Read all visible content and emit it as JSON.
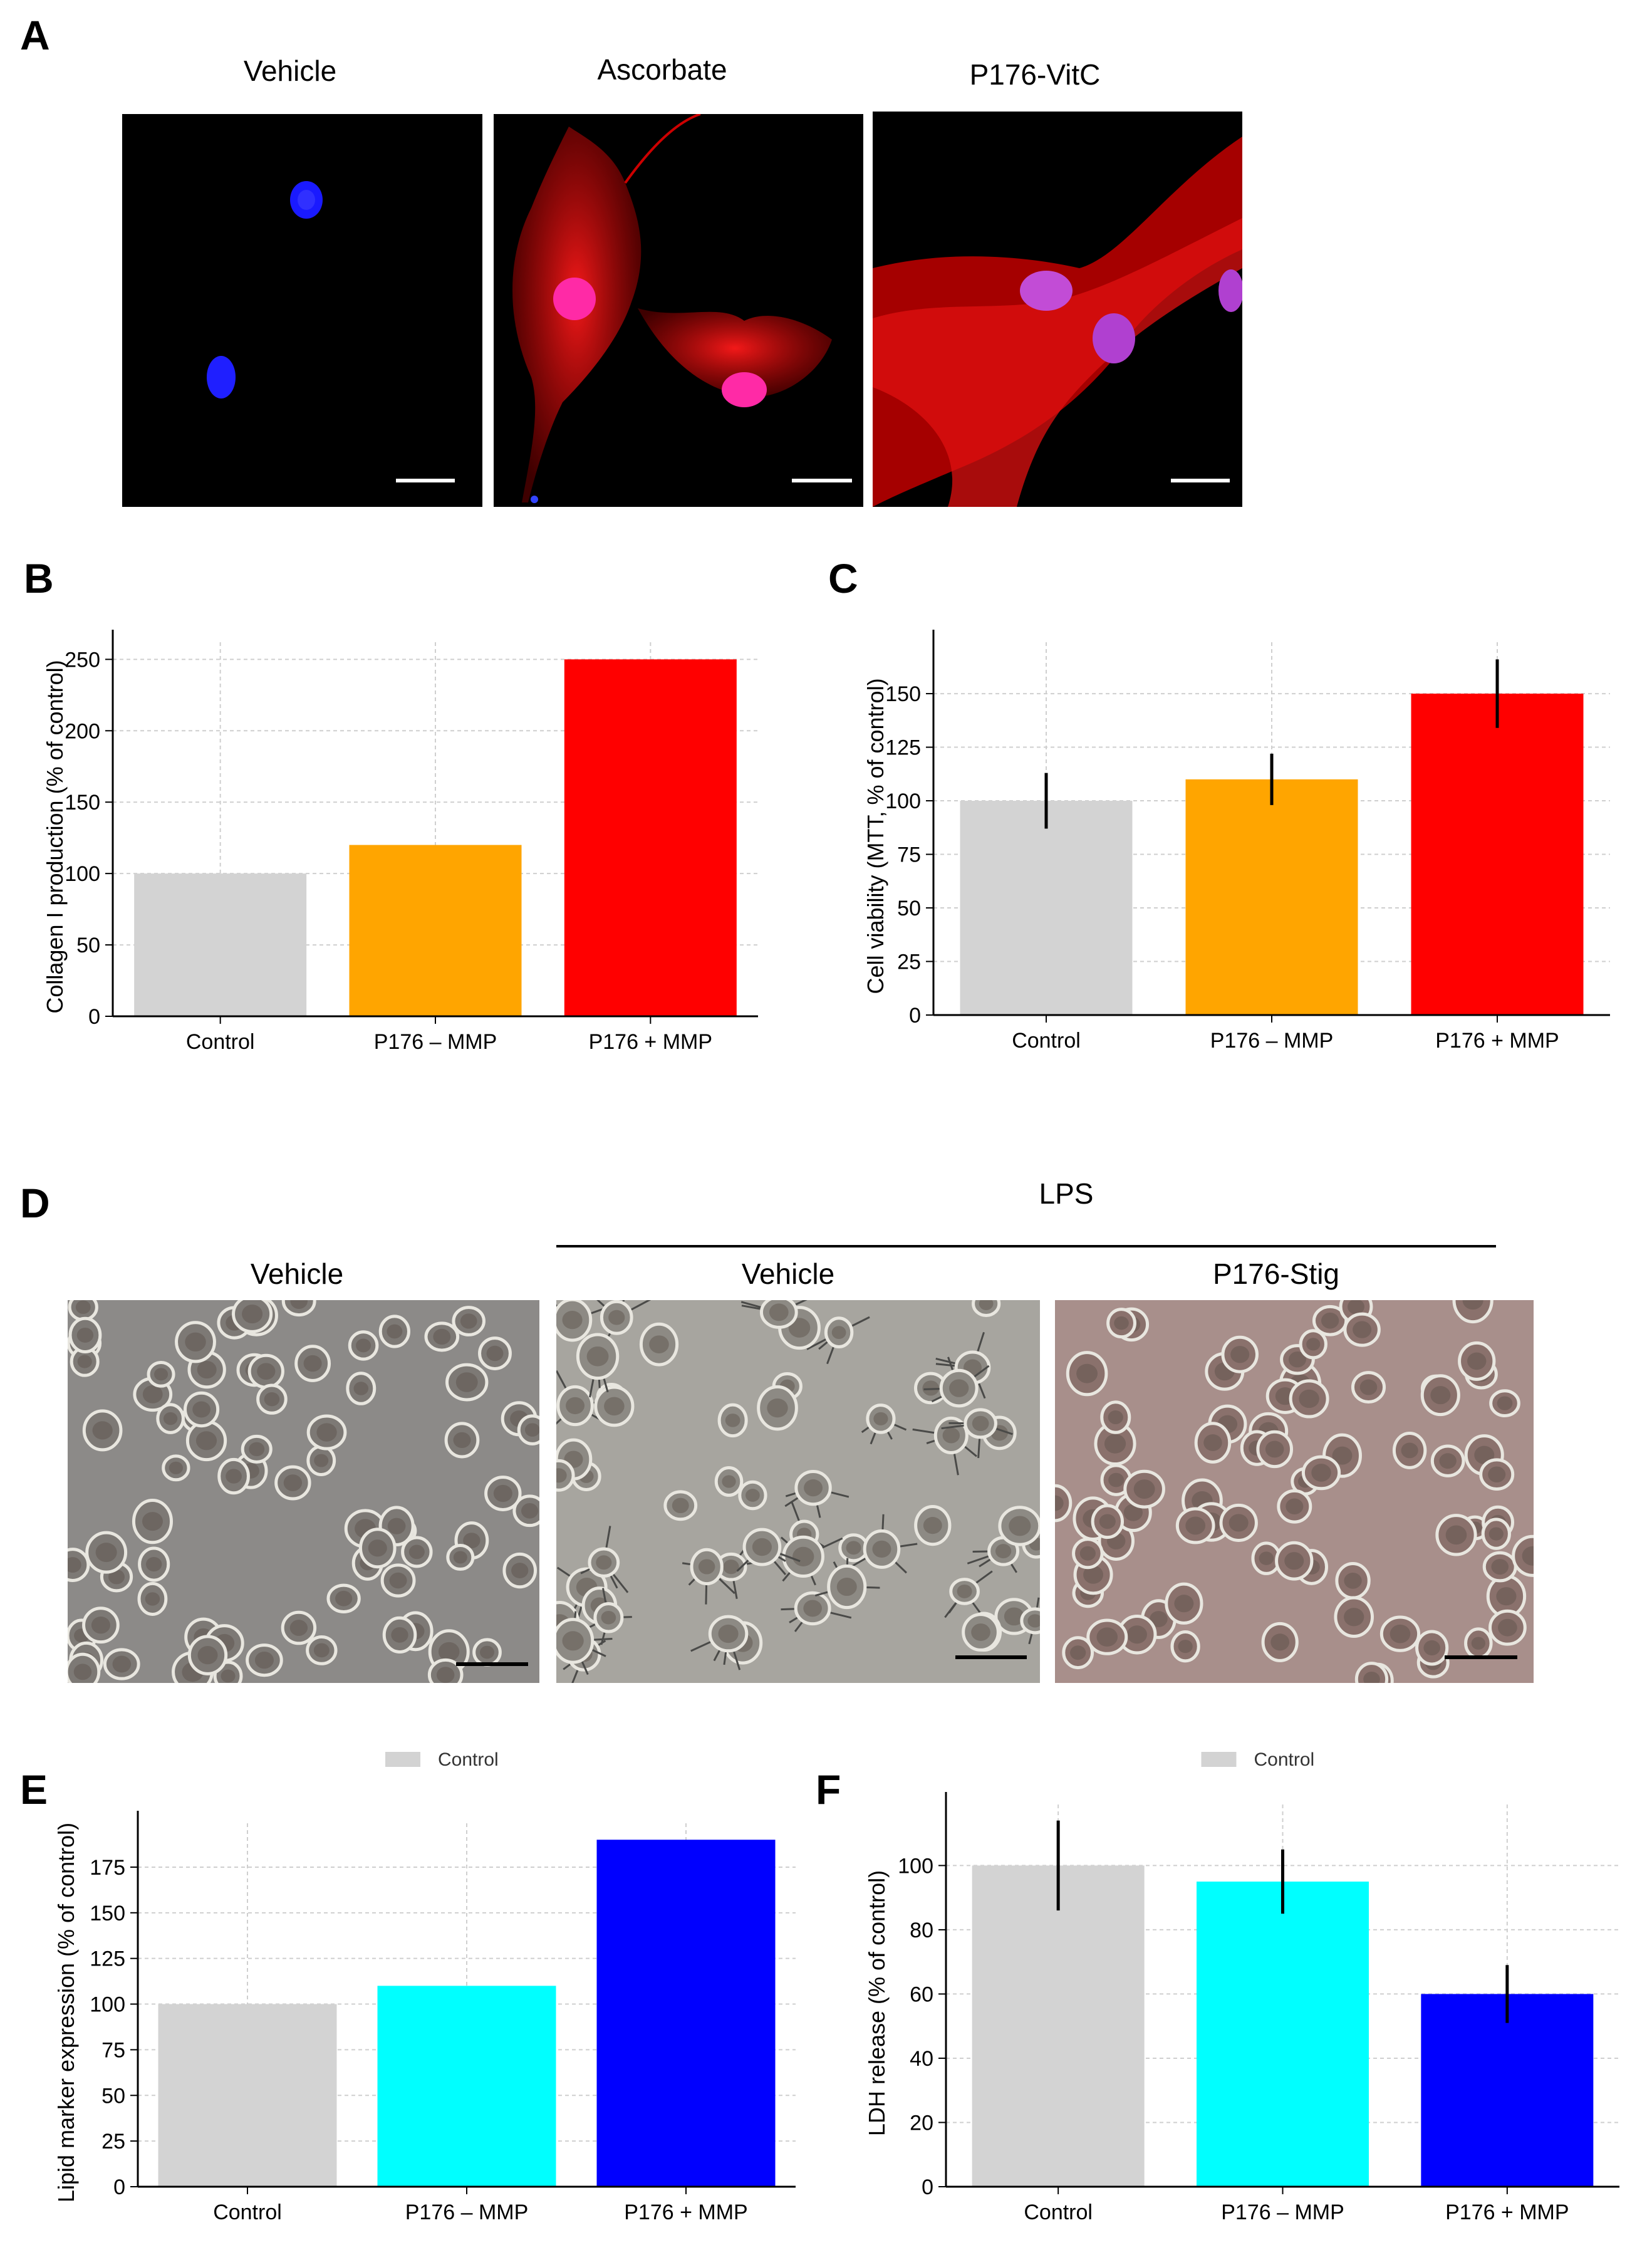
{
  "panels": {
    "A": {
      "letter": "A",
      "titles": [
        "Vehicle",
        "Ascorbate",
        "P176-VitC"
      ]
    },
    "D": {
      "letter": "D",
      "group_label": "LPS",
      "titles": [
        "Vehicle",
        "Vehicle",
        "P176-Stig"
      ]
    }
  },
  "chart_data": [
    {
      "id": "B",
      "panel": "B",
      "type": "bar",
      "categories": [
        "Control",
        "P176 – MMP",
        "P176 + MMP"
      ],
      "values": [
        100,
        120,
        250
      ],
      "errors": null,
      "colors": [
        "#d3d3d3",
        "#ffa500",
        "#ff0000"
      ],
      "ylabel": "Collagen I production (% of control)",
      "ylim": [
        0,
        262
      ],
      "yticks": [
        0,
        50,
        100,
        150,
        200,
        250
      ],
      "grid": true
    },
    {
      "id": "C",
      "panel": "C",
      "type": "bar",
      "categories": [
        "Control",
        "P176 – MMP",
        "P176 + MMP"
      ],
      "values": [
        100,
        110,
        150
      ],
      "errors": [
        13,
        12,
        16
      ],
      "colors": [
        "#d3d3d3",
        "#ffa500",
        "#ff0000"
      ],
      "ylabel": "Cell viability (MTT, % of control)",
      "ylim": [
        0,
        174
      ],
      "yticks": [
        0,
        25,
        50,
        75,
        100,
        125,
        150
      ],
      "grid": true
    },
    {
      "id": "E",
      "panel": "E",
      "type": "bar",
      "categories": [
        "Control",
        "P176 – MMP",
        "P176 + MMP"
      ],
      "values": [
        100,
        110,
        190
      ],
      "errors": null,
      "colors": [
        "#d3d3d3",
        "#00ffff",
        "#0000ff"
      ],
      "ylabel": "Lipid marker expression (% of control)",
      "ylim": [
        0,
        199
      ],
      "yticks": [
        0,
        25,
        50,
        75,
        100,
        125,
        150,
        175
      ],
      "legend": "Control",
      "legend_color": "#d3d3d3",
      "legend_position": "top-center",
      "grid": true
    },
    {
      "id": "F",
      "panel": "F",
      "type": "bar",
      "categories": [
        "Control",
        "P176 – MMP",
        "P176 + MMP"
      ],
      "values": [
        100,
        95,
        60
      ],
      "errors": [
        14,
        10,
        9
      ],
      "colors": [
        "#d3d3d3",
        "#00ffff",
        "#0000ff"
      ],
      "ylabel": "LDH release (% of control)",
      "ylim": [
        0,
        119
      ],
      "yticks": [
        0,
        20,
        40,
        60,
        80,
        100
      ],
      "legend": "Control",
      "legend_color": "#d3d3d3",
      "legend_position": "top-center",
      "grid": true
    }
  ]
}
